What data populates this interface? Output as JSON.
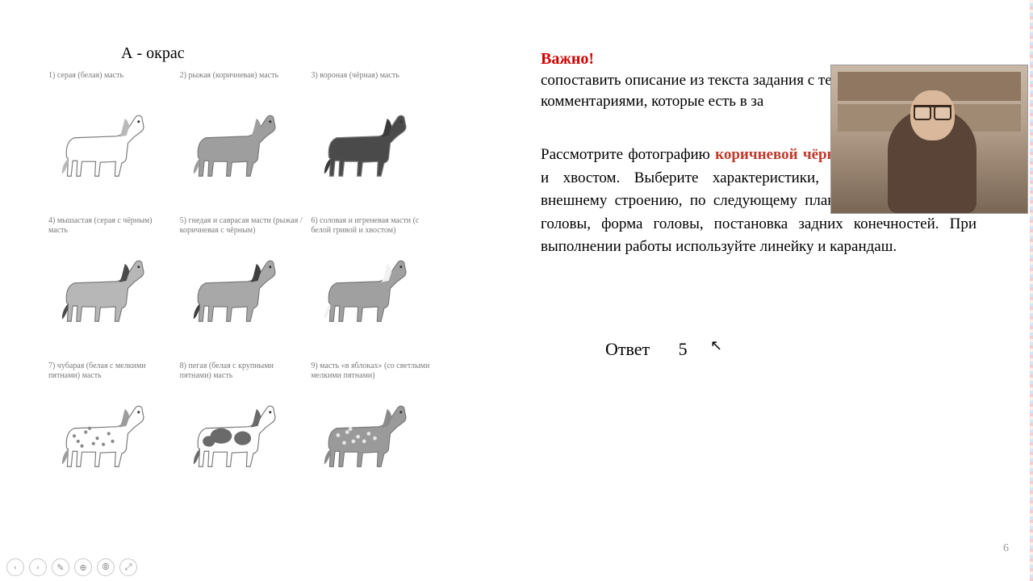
{
  "title_a": "А - окрас",
  "horses": [
    {
      "caption": "1) серая (белая) масть",
      "body": "#ffffff",
      "mane": "#b9b9b9",
      "spots": "none"
    },
    {
      "caption": "2) рыжая (коричневая) масть",
      "body": "#9e9e9e",
      "mane": "#9e9e9e",
      "spots": "none"
    },
    {
      "caption": "3) вороная (чёрная) масть",
      "body": "#4a4a4a",
      "mane": "#3a3a3a",
      "spots": "none"
    },
    {
      "caption": "4) мышастая (серая с чёрным) масть",
      "body": "#b7b7b7",
      "mane": "#4a4a4a",
      "spots": "none"
    },
    {
      "caption": "5) гнедая и саврасая масти (рыжая / коричневая с чёрным)",
      "body": "#a8a8a8",
      "mane": "#3f3f3f",
      "spots": "none"
    },
    {
      "caption": "6) соловая и игреневая масти (с белой гривой и хвостом)",
      "body": "#a0a0a0",
      "mane": "#f2f2f2",
      "spots": "none"
    },
    {
      "caption": "7) чубарая (белая с мелкими пятнами) масть",
      "body": "#ffffff",
      "mane": "#9c9c9c",
      "spots": "small"
    },
    {
      "caption": "8) пегая (белая с крупными пятнами) масть",
      "body": "#ffffff",
      "mane": "#6a6a6a",
      "spots": "large"
    },
    {
      "caption": "9) масть «в яблоках» (со светлыми мелкими пятнами)",
      "body": "#9a9a9a",
      "mane": "#8a8a8a",
      "spots": "light"
    }
  ],
  "important_label": "Важно!",
  "important_color": "#d40000",
  "subtitle_line1": "сопоставить описание из текста задания с теми",
  "subtitle_line2": " комментариями, которые есть в за",
  "body_prefix": "Рассмотрите фотографию ",
  "hl1": "коричневой",
  "body_mid1": " ",
  "hl2": "чёрными ногами",
  "body_rest": ", гривой и хвостом. Выберите характеристики, соответствующие её внешнему строению, по следующему плану: окрас, постановка головы, форма головы, постановка задних конечностей. При выполнении работы используйте линейку и карандаш.",
  "hl_color": "#c03a2a",
  "answer_label": "Ответ",
  "answer_value": "5",
  "page_number": "6",
  "toolbar_icons": [
    "‹",
    "›",
    "✎",
    "⊕",
    "⦾",
    "⤢"
  ]
}
